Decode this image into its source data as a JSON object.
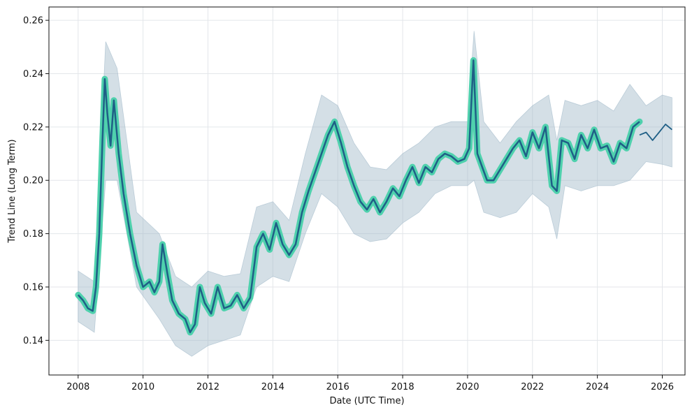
{
  "chart_data": {
    "type": "line",
    "title": "",
    "xlabel": "Date (UTC Time)",
    "ylabel": "Trend Line (Long Term)",
    "xlim": [
      2007.1,
      2026.7
    ],
    "ylim": [
      0.127,
      0.265
    ],
    "x_ticks": [
      2008,
      2010,
      2012,
      2014,
      2016,
      2018,
      2020,
      2022,
      2024,
      2026
    ],
    "y_ticks": [
      0.14,
      0.16,
      0.18,
      0.2,
      0.22,
      0.24,
      0.26
    ],
    "y_tick_labels": [
      "0.14",
      "0.16",
      "0.18",
      "0.20",
      "0.22",
      "0.24",
      "0.26"
    ],
    "grid": true,
    "colors": {
      "line": "#1f5f86",
      "highlight": "#4fd1ad",
      "band": "#9fb8c8"
    },
    "series": [
      {
        "role": "historical",
        "x": [
          2008.0,
          2008.15,
          2008.3,
          2008.45,
          2008.55,
          2008.65,
          2008.75,
          2008.82,
          2008.9,
          2009.0,
          2009.1,
          2009.25,
          2009.4,
          2009.6,
          2009.8,
          2010.0,
          2010.2,
          2010.35,
          2010.5,
          2010.6,
          2010.75,
          2010.9,
          2011.1,
          2011.3,
          2011.45,
          2011.6,
          2011.75,
          2011.9,
          2012.1,
          2012.3,
          2012.5,
          2012.7,
          2012.9,
          2013.1,
          2013.3,
          2013.5,
          2013.7,
          2013.9,
          2014.1,
          2014.3,
          2014.5,
          2014.7,
          2014.9,
          2015.1,
          2015.3,
          2015.5,
          2015.7,
          2015.9,
          2016.1,
          2016.3,
          2016.5,
          2016.7,
          2016.9,
          2017.1,
          2017.3,
          2017.5,
          2017.7,
          2017.9,
          2018.1,
          2018.3,
          2018.5,
          2018.7,
          2018.9,
          2019.1,
          2019.3,
          2019.5,
          2019.7,
          2019.9,
          2020.05,
          2020.18,
          2020.3,
          2020.45,
          2020.6,
          2020.8,
          2021.0,
          2021.2,
          2021.4,
          2021.6,
          2021.8,
          2022.0,
          2022.2,
          2022.4,
          2022.6,
          2022.75,
          2022.9,
          2023.1,
          2023.3,
          2023.5,
          2023.7,
          2023.9,
          2024.1,
          2024.3,
          2024.5,
          2024.7,
          2024.9,
          2025.1,
          2025.3
        ],
        "y": [
          0.157,
          0.155,
          0.152,
          0.151,
          0.16,
          0.18,
          0.215,
          0.238,
          0.225,
          0.213,
          0.23,
          0.21,
          0.195,
          0.18,
          0.168,
          0.16,
          0.162,
          0.158,
          0.162,
          0.176,
          0.165,
          0.155,
          0.15,
          0.148,
          0.143,
          0.146,
          0.16,
          0.154,
          0.15,
          0.16,
          0.152,
          0.153,
          0.157,
          0.152,
          0.156,
          0.175,
          0.18,
          0.174,
          0.184,
          0.176,
          0.172,
          0.176,
          0.188,
          0.196,
          0.203,
          0.21,
          0.217,
          0.222,
          0.214,
          0.205,
          0.198,
          0.192,
          0.189,
          0.193,
          0.188,
          0.192,
          0.197,
          0.194,
          0.2,
          0.205,
          0.199,
          0.205,
          0.203,
          0.208,
          0.21,
          0.209,
          0.207,
          0.208,
          0.212,
          0.245,
          0.21,
          0.205,
          0.2,
          0.2,
          0.204,
          0.208,
          0.212,
          0.215,
          0.209,
          0.218,
          0.212,
          0.22,
          0.198,
          0.196,
          0.215,
          0.214,
          0.208,
          0.217,
          0.212,
          0.219,
          0.212,
          0.213,
          0.207,
          0.214,
          0.212,
          0.22,
          0.222
        ]
      },
      {
        "role": "forecast",
        "x": [
          2025.3,
          2025.5,
          2025.7,
          2025.9,
          2026.1,
          2026.3
        ],
        "y": [
          0.217,
          0.218,
          0.215,
          0.218,
          0.221,
          0.219
        ]
      }
    ],
    "band": {
      "x": [
        2008.0,
        2008.5,
        2008.85,
        2009.2,
        2009.8,
        2010.5,
        2011.0,
        2011.5,
        2012.0,
        2012.5,
        2013.0,
        2013.5,
        2014.0,
        2014.5,
        2015.0,
        2015.5,
        2016.0,
        2016.5,
        2017.0,
        2017.5,
        2018.0,
        2018.5,
        2019.0,
        2019.5,
        2020.0,
        2020.2,
        2020.5,
        2021.0,
        2021.5,
        2022.0,
        2022.5,
        2022.75,
        2023.0,
        2023.5,
        2024.0,
        2024.5,
        2025.0,
        2025.5,
        2026.0,
        2026.3
      ],
      "upper": [
        0.166,
        0.162,
        0.252,
        0.242,
        0.188,
        0.18,
        0.164,
        0.16,
        0.166,
        0.164,
        0.165,
        0.19,
        0.192,
        0.185,
        0.21,
        0.232,
        0.228,
        0.214,
        0.205,
        0.204,
        0.21,
        0.214,
        0.22,
        0.222,
        0.222,
        0.256,
        0.222,
        0.214,
        0.222,
        0.228,
        0.232,
        0.215,
        0.23,
        0.228,
        0.23,
        0.226,
        0.236,
        0.228,
        0.232,
        0.231
      ],
      "lower": [
        0.147,
        0.143,
        0.2,
        0.2,
        0.16,
        0.148,
        0.138,
        0.134,
        0.138,
        0.14,
        0.142,
        0.16,
        0.164,
        0.162,
        0.18,
        0.195,
        0.19,
        0.18,
        0.177,
        0.178,
        0.184,
        0.188,
        0.195,
        0.198,
        0.198,
        0.2,
        0.188,
        0.186,
        0.188,
        0.195,
        0.19,
        0.178,
        0.198,
        0.196,
        0.198,
        0.198,
        0.2,
        0.207,
        0.206,
        0.205
      ]
    }
  }
}
